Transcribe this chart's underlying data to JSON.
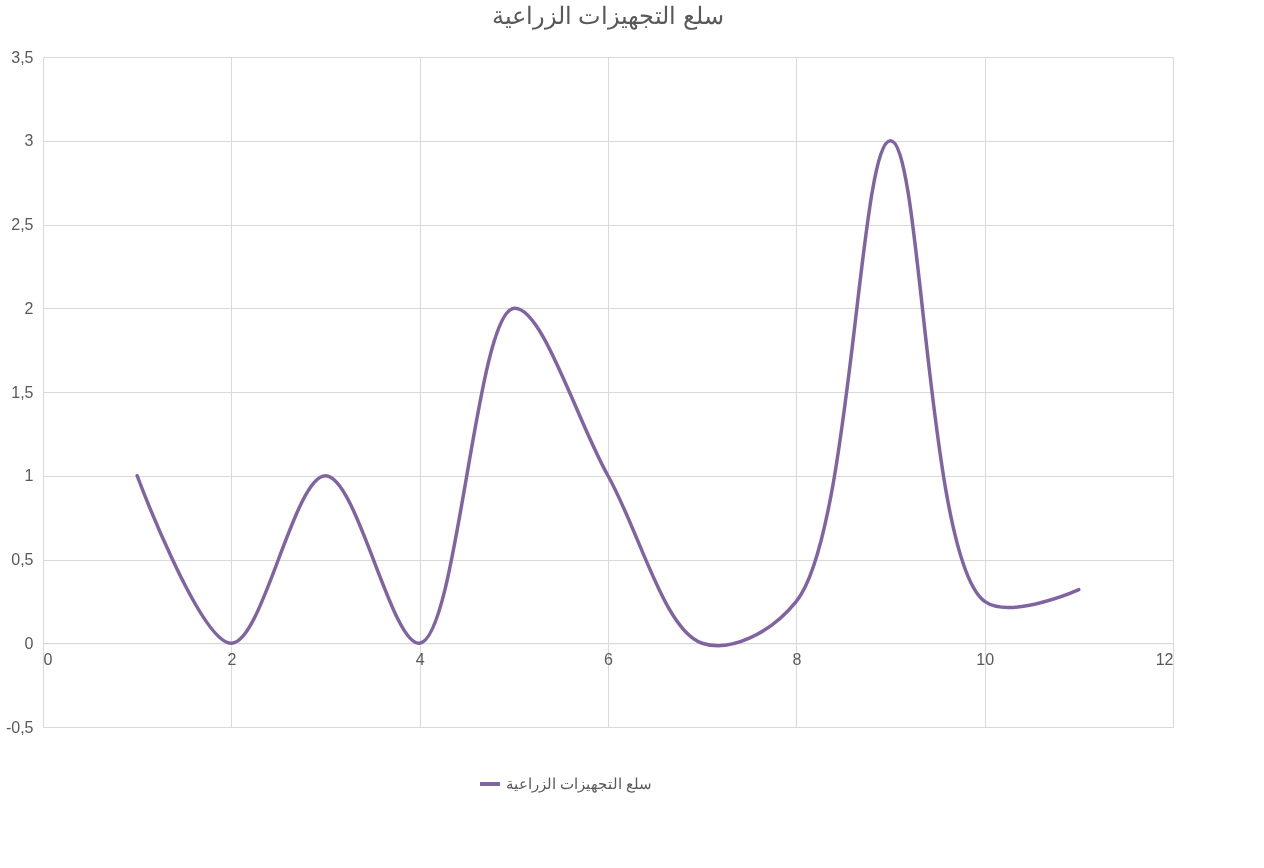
{
  "chart_data": {
    "type": "line",
    "title": "سلع التجهيزات الزراعية",
    "x": [
      1,
      2,
      3,
      4,
      5,
      6,
      7,
      8,
      9,
      10,
      11
    ],
    "series": [
      {
        "name": "سلع التجهيزات الزراعية",
        "color": "#8064a2",
        "values": [
          1,
          0,
          1,
          0,
          2,
          1,
          0,
          0.25,
          3,
          0.25,
          0.32
        ]
      }
    ],
    "xlim": [
      0,
      12
    ],
    "xticks": [
      0,
      2,
      4,
      6,
      8,
      10,
      12
    ],
    "ylim": [
      -0.5,
      3.5
    ],
    "yticks": [
      {
        "value": -0.5,
        "label": "-0,5"
      },
      0,
      {
        "value": 0.5,
        "label": "0,5"
      },
      1,
      {
        "value": 1.5,
        "label": "1,5"
      },
      2,
      {
        "value": 2.5,
        "label": "2,5"
      },
      3,
      {
        "value": 3.5,
        "label": "3,5"
      }
    ],
    "grid": true,
    "legend": "bottom",
    "marker": "none",
    "line_style": "solid"
  }
}
